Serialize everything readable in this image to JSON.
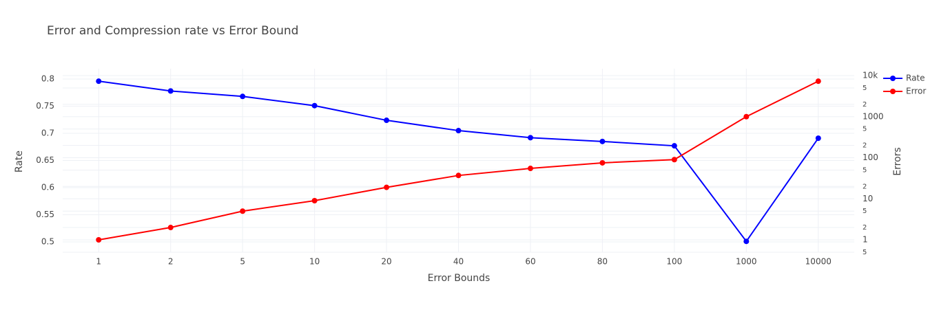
{
  "chart_data": {
    "type": "line",
    "title": "Error and Compression rate vs Error Bound",
    "x_label": "Error Bounds",
    "y_label": "Rate",
    "y2_label": "Errors",
    "categories": [
      "1",
      "2",
      "5",
      "10",
      "20",
      "40",
      "60",
      "80",
      "100",
      "1000",
      "10000"
    ],
    "series": [
      {
        "name": "Rate",
        "color": "#0000ff",
        "values": [
          0.796,
          0.778,
          0.768,
          0.751,
          0.724,
          0.705,
          0.692,
          0.685,
          0.677,
          0.501,
          0.691
        ]
      },
      {
        "name": "Error",
        "color": "#ff0000",
        "axis": "y2",
        "values": [
          1,
          2,
          5,
          9,
          19,
          37,
          55,
          75,
          90,
          1000,
          7300
        ]
      }
    ],
    "ylim": [
      0.481,
      0.819
    ],
    "yticks": [
      0.5,
      0.55,
      0.6,
      0.65,
      0.7,
      0.75,
      0.8
    ],
    "y2lim": [
      0.5,
      14700
    ],
    "y2_log": true,
    "y2ticks": [
      {
        "value": 0.5,
        "label": "5"
      },
      1,
      2,
      5,
      10,
      {
        "value": 20,
        "label": "2"
      },
      {
        "value": 50,
        "label": "5"
      },
      100,
      {
        "value": 200,
        "label": "2"
      },
      {
        "value": 500,
        "label": "5"
      },
      1000,
      {
        "value": 2000,
        "label": "2"
      },
      {
        "value": 5000,
        "label": "5"
      },
      {
        "value": 10000,
        "label": "10k"
      }
    ],
    "grid": true,
    "legend_position": "top-right"
  }
}
